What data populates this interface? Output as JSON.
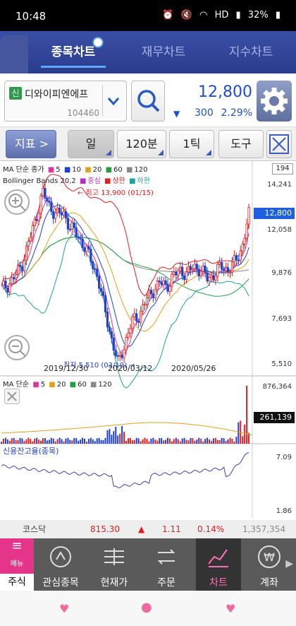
{
  "status_bar": {
    "time": "10:48",
    "battery": "32%",
    "hd": "HD"
  },
  "tabs": [
    {
      "label": "종목차트",
      "active": true
    },
    {
      "label": "재무차트",
      "active": false
    },
    {
      "label": "지수차트",
      "active": false
    }
  ],
  "stock": {
    "badge": "신",
    "name": "디와이피엔에프",
    "code": "104460",
    "price": "12,800",
    "direction": "▼",
    "change": "300",
    "change_pct": "2.29%"
  },
  "toolbar": {
    "indicator_label": "지표",
    "indicator_chevron": ">",
    "period_day": "일",
    "period_minute": "120분",
    "period_tick": "1틱",
    "tools": "도구"
  },
  "chart": {
    "legend_ma": [
      "MA 단순 종가",
      "5",
      "10",
      "20",
      "60",
      "120"
    ],
    "legend_bb": [
      "Bollinger Bands 20,2",
      "중심",
      "상한",
      "하한"
    ],
    "count_box": "194",
    "y_labels": [
      "14,241",
      "12,058",
      "9,876",
      "7,693",
      "5,510"
    ],
    "current_price_box": "12,800",
    "high_annotation": "← 최고 13,900 (01/15)",
    "low_annotation": "최저 5,510 (03/19) →",
    "x_labels": [
      "2019/12/30",
      "2020/03/12",
      "2020/05/26"
    ],
    "volume_legend": [
      "MA 단순",
      "5",
      "20",
      "60",
      "120"
    ],
    "volume_y_labels": [
      "876,364",
      "261,139"
    ],
    "credit_title": "신용잔고율(종목)",
    "credit_y_labels": [
      "7.09",
      "1.86"
    ],
    "colors": {
      "ma5": "#e0339c",
      "ma10": "#2040d0",
      "ma20": "#e0a020",
      "ma60": "#20a040",
      "ma120": "#888888",
      "up": "#e02020",
      "down": "#2040d0",
      "bb_center": "#b030c0",
      "bb_upper": "#e02020",
      "bb_lower": "#20a0a0"
    }
  },
  "chart_data": {
    "type": "candlestick",
    "x_range": [
      "2019/12/30",
      "2020/05/26"
    ],
    "ylim": [
      5510,
      14241
    ],
    "price_series_keypoints": [
      {
        "label": "start",
        "close": 9200
      },
      {
        "label": "2019/12/30",
        "close": 11500
      },
      {
        "label": "01/15",
        "high": 13900
      },
      {
        "label": "2020/03/12",
        "close": 8200
      },
      {
        "label": "03/19",
        "low": 5510
      },
      {
        "label": "2020/05/26",
        "close": 10300
      },
      {
        "label": "last",
        "close": 12800
      }
    ],
    "volume_ylim": [
      0,
      876364
    ],
    "volume_current": 261139,
    "credit_ylim": [
      1.86,
      7.09
    ]
  },
  "index_bar": {
    "name": "코스닥",
    "value": "815.30",
    "arrow": "▲",
    "change": "1.11",
    "pct": "0.14%",
    "volume": "1,357,354"
  },
  "nav": {
    "menu": "메뉴",
    "jusik": "주식",
    "items": [
      {
        "label": "관심종목",
        "icon": "star-circle-icon"
      },
      {
        "label": "현재가",
        "icon": "price-list-icon"
      },
      {
        "label": "주문",
        "icon": "exchange-icon"
      },
      {
        "label": "차트",
        "icon": "chart-icon",
        "active": true
      },
      {
        "label": "계좌",
        "icon": "won-icon"
      }
    ],
    "more": "▶"
  }
}
